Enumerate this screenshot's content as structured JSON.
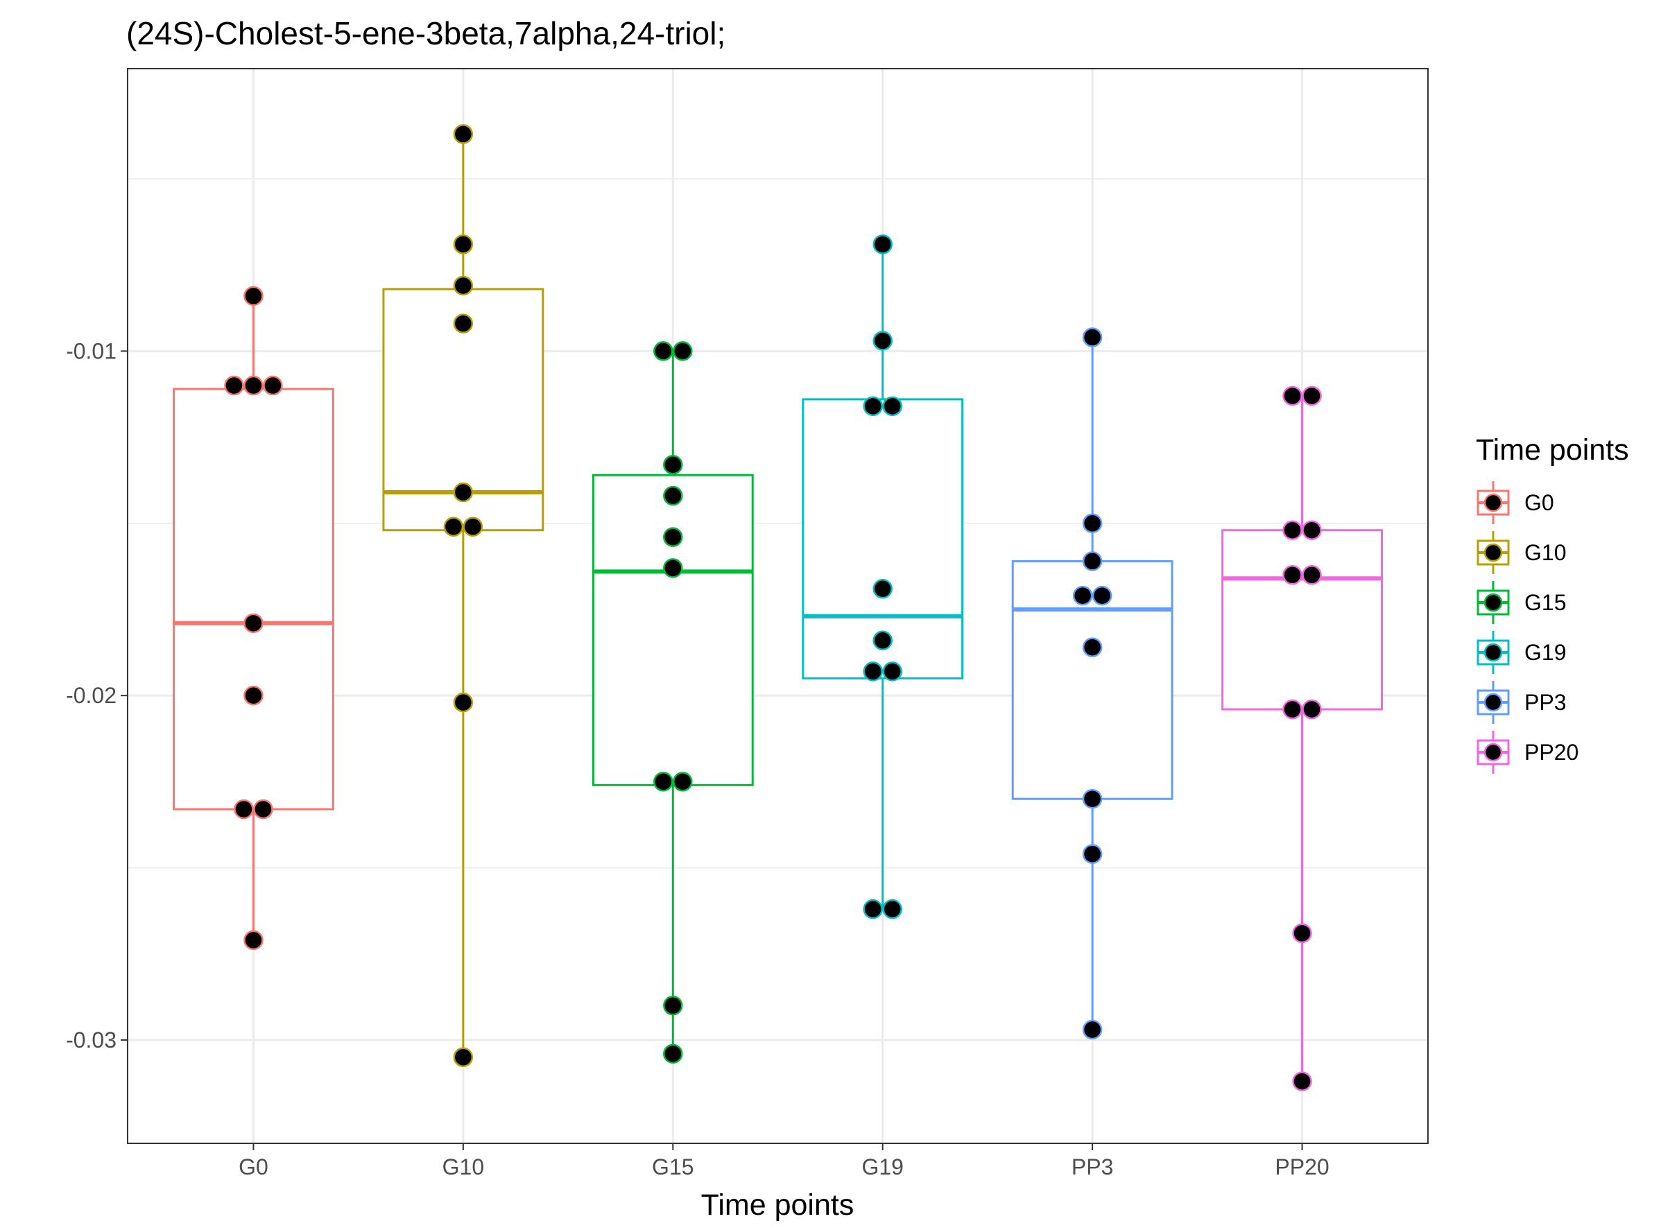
{
  "chart_data": {
    "type": "box",
    "title": "(24S)-Cholest-5-ene-3beta,7alpha,24-triol;",
    "xlabel": "Time points",
    "ylabel": "",
    "ylim": [
      -0.033,
      -0.0018
    ],
    "yticks": [
      -0.01,
      -0.02,
      -0.03
    ],
    "ytick_labels": [
      "-0.01",
      "-0.02",
      "-0.03"
    ],
    "grid": true,
    "legend": {
      "title": "Time points",
      "position": "right"
    },
    "categories": [
      "G0",
      "G10",
      "G15",
      "G19",
      "PP3",
      "PP20"
    ],
    "colors": [
      "#F8766D",
      "#B79F00",
      "#00BA38",
      "#00BFC4",
      "#619CFF",
      "#F564E3"
    ],
    "series": [
      {
        "name": "G0",
        "box": {
          "whisker_low": -0.0271,
          "q1": -0.0233,
          "median": -0.0179,
          "q3": -0.0111,
          "whisker_high": -0.0084
        },
        "points": [
          -0.0084,
          -0.011,
          -0.011,
          -0.011,
          -0.0179,
          -0.02,
          -0.0233,
          -0.0233,
          -0.0271
        ]
      },
      {
        "name": "G10",
        "box": {
          "whisker_low": -0.0305,
          "q1": -0.0152,
          "median": -0.0141,
          "q3": -0.0082,
          "whisker_high": -0.0037
        },
        "points": [
          -0.0037,
          -0.0069,
          -0.0081,
          -0.0092,
          -0.0141,
          -0.0151,
          -0.0151,
          -0.0202,
          -0.0305
        ]
      },
      {
        "name": "G15",
        "box": {
          "whisker_low": -0.0304,
          "q1": -0.0226,
          "median": -0.0164,
          "q3": -0.0136,
          "whisker_high": -0.01
        },
        "points": [
          -0.01,
          -0.01,
          -0.0133,
          -0.0142,
          -0.0154,
          -0.0163,
          -0.0225,
          -0.0225,
          -0.029,
          -0.0304
        ]
      },
      {
        "name": "G19",
        "box": {
          "whisker_low": -0.0262,
          "q1": -0.0195,
          "median": -0.0177,
          "q3": -0.0114,
          "whisker_high": -0.0069
        },
        "points": [
          -0.0069,
          -0.0097,
          -0.0116,
          -0.0116,
          -0.0169,
          -0.0184,
          -0.0193,
          -0.0193,
          -0.0262,
          -0.0262
        ]
      },
      {
        "name": "PP3",
        "box": {
          "whisker_low": -0.0297,
          "q1": -0.023,
          "median": -0.0175,
          "q3": -0.0161,
          "whisker_high": -0.0096
        },
        "points": [
          -0.0096,
          -0.015,
          -0.0161,
          -0.0171,
          -0.0171,
          -0.0186,
          -0.023,
          -0.0246,
          -0.0297
        ]
      },
      {
        "name": "PP20",
        "box": {
          "whisker_low": -0.0312,
          "q1": -0.0204,
          "median": -0.0166,
          "q3": -0.0152,
          "whisker_high": -0.0113
        },
        "points": [
          -0.0113,
          -0.0113,
          -0.0152,
          -0.0152,
          -0.0165,
          -0.0165,
          -0.0204,
          -0.0204,
          -0.0269,
          -0.0312
        ]
      }
    ]
  }
}
